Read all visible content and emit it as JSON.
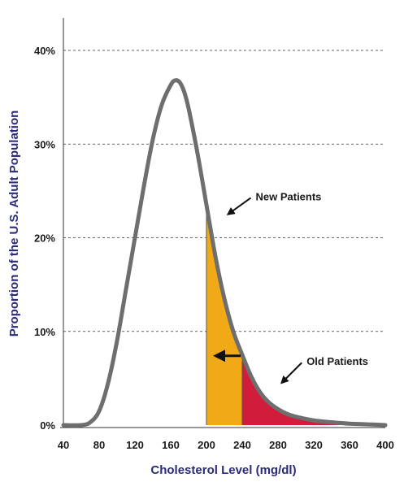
{
  "chart_data": {
    "type": "area",
    "title": "",
    "xlabel": "Cholesterol Level (mg/dl)",
    "ylabel": "Proportion of the U.S. Adult Population",
    "xlim": [
      40,
      400
    ],
    "ylim": [
      0,
      40
    ],
    "x_ticks": [
      "40",
      "80",
      "120",
      "160",
      "200",
      "240",
      "280",
      "320",
      "360",
      "400"
    ],
    "y_ticks": [
      "0%",
      "10%",
      "20%",
      "30%",
      "40%"
    ],
    "grid": "horizontal dashed",
    "curve": {
      "x": [
        40,
        60,
        70,
        80,
        90,
        100,
        110,
        120,
        130,
        140,
        150,
        160,
        165,
        170,
        175,
        180,
        190,
        200,
        210,
        220,
        230,
        240,
        250,
        260,
        270,
        280,
        290,
        300,
        320,
        340,
        360,
        380,
        400
      ],
      "y": [
        0,
        0,
        0.3,
        1.5,
        4.5,
        9,
        14.5,
        20,
        25.5,
        30.5,
        34.2,
        36.3,
        36.8,
        36.6,
        35.6,
        33.8,
        29,
        23.5,
        18,
        13.5,
        10,
        7.5,
        5.2,
        3.5,
        2.4,
        1.7,
        1.2,
        0.9,
        0.5,
        0.3,
        0.15,
        0.08,
        0
      ]
    },
    "regions": [
      {
        "name": "New Patients",
        "from": 200,
        "to": 240,
        "color": "#f2a918"
      },
      {
        "name": "Old Patients",
        "from": 240,
        "to": 400,
        "color": "#d11c3c"
      }
    ],
    "annotations": [
      {
        "text": "New Patients",
        "x": 255,
        "y": 24,
        "arrow_to": [
          224,
          22.5
        ]
      },
      {
        "text": "Old Patients",
        "x": 312,
        "y": 6.4,
        "arrow_to": [
          284,
          4.5
        ]
      }
    ],
    "shift_arrow": {
      "from": 240,
      "to": 210,
      "y": 7.4
    },
    "colors": {
      "curve": "#6e6e6e",
      "new_patients": "#f2a918",
      "old_patients": "#d11c3c",
      "axis_text": "#2b2b7a"
    }
  }
}
